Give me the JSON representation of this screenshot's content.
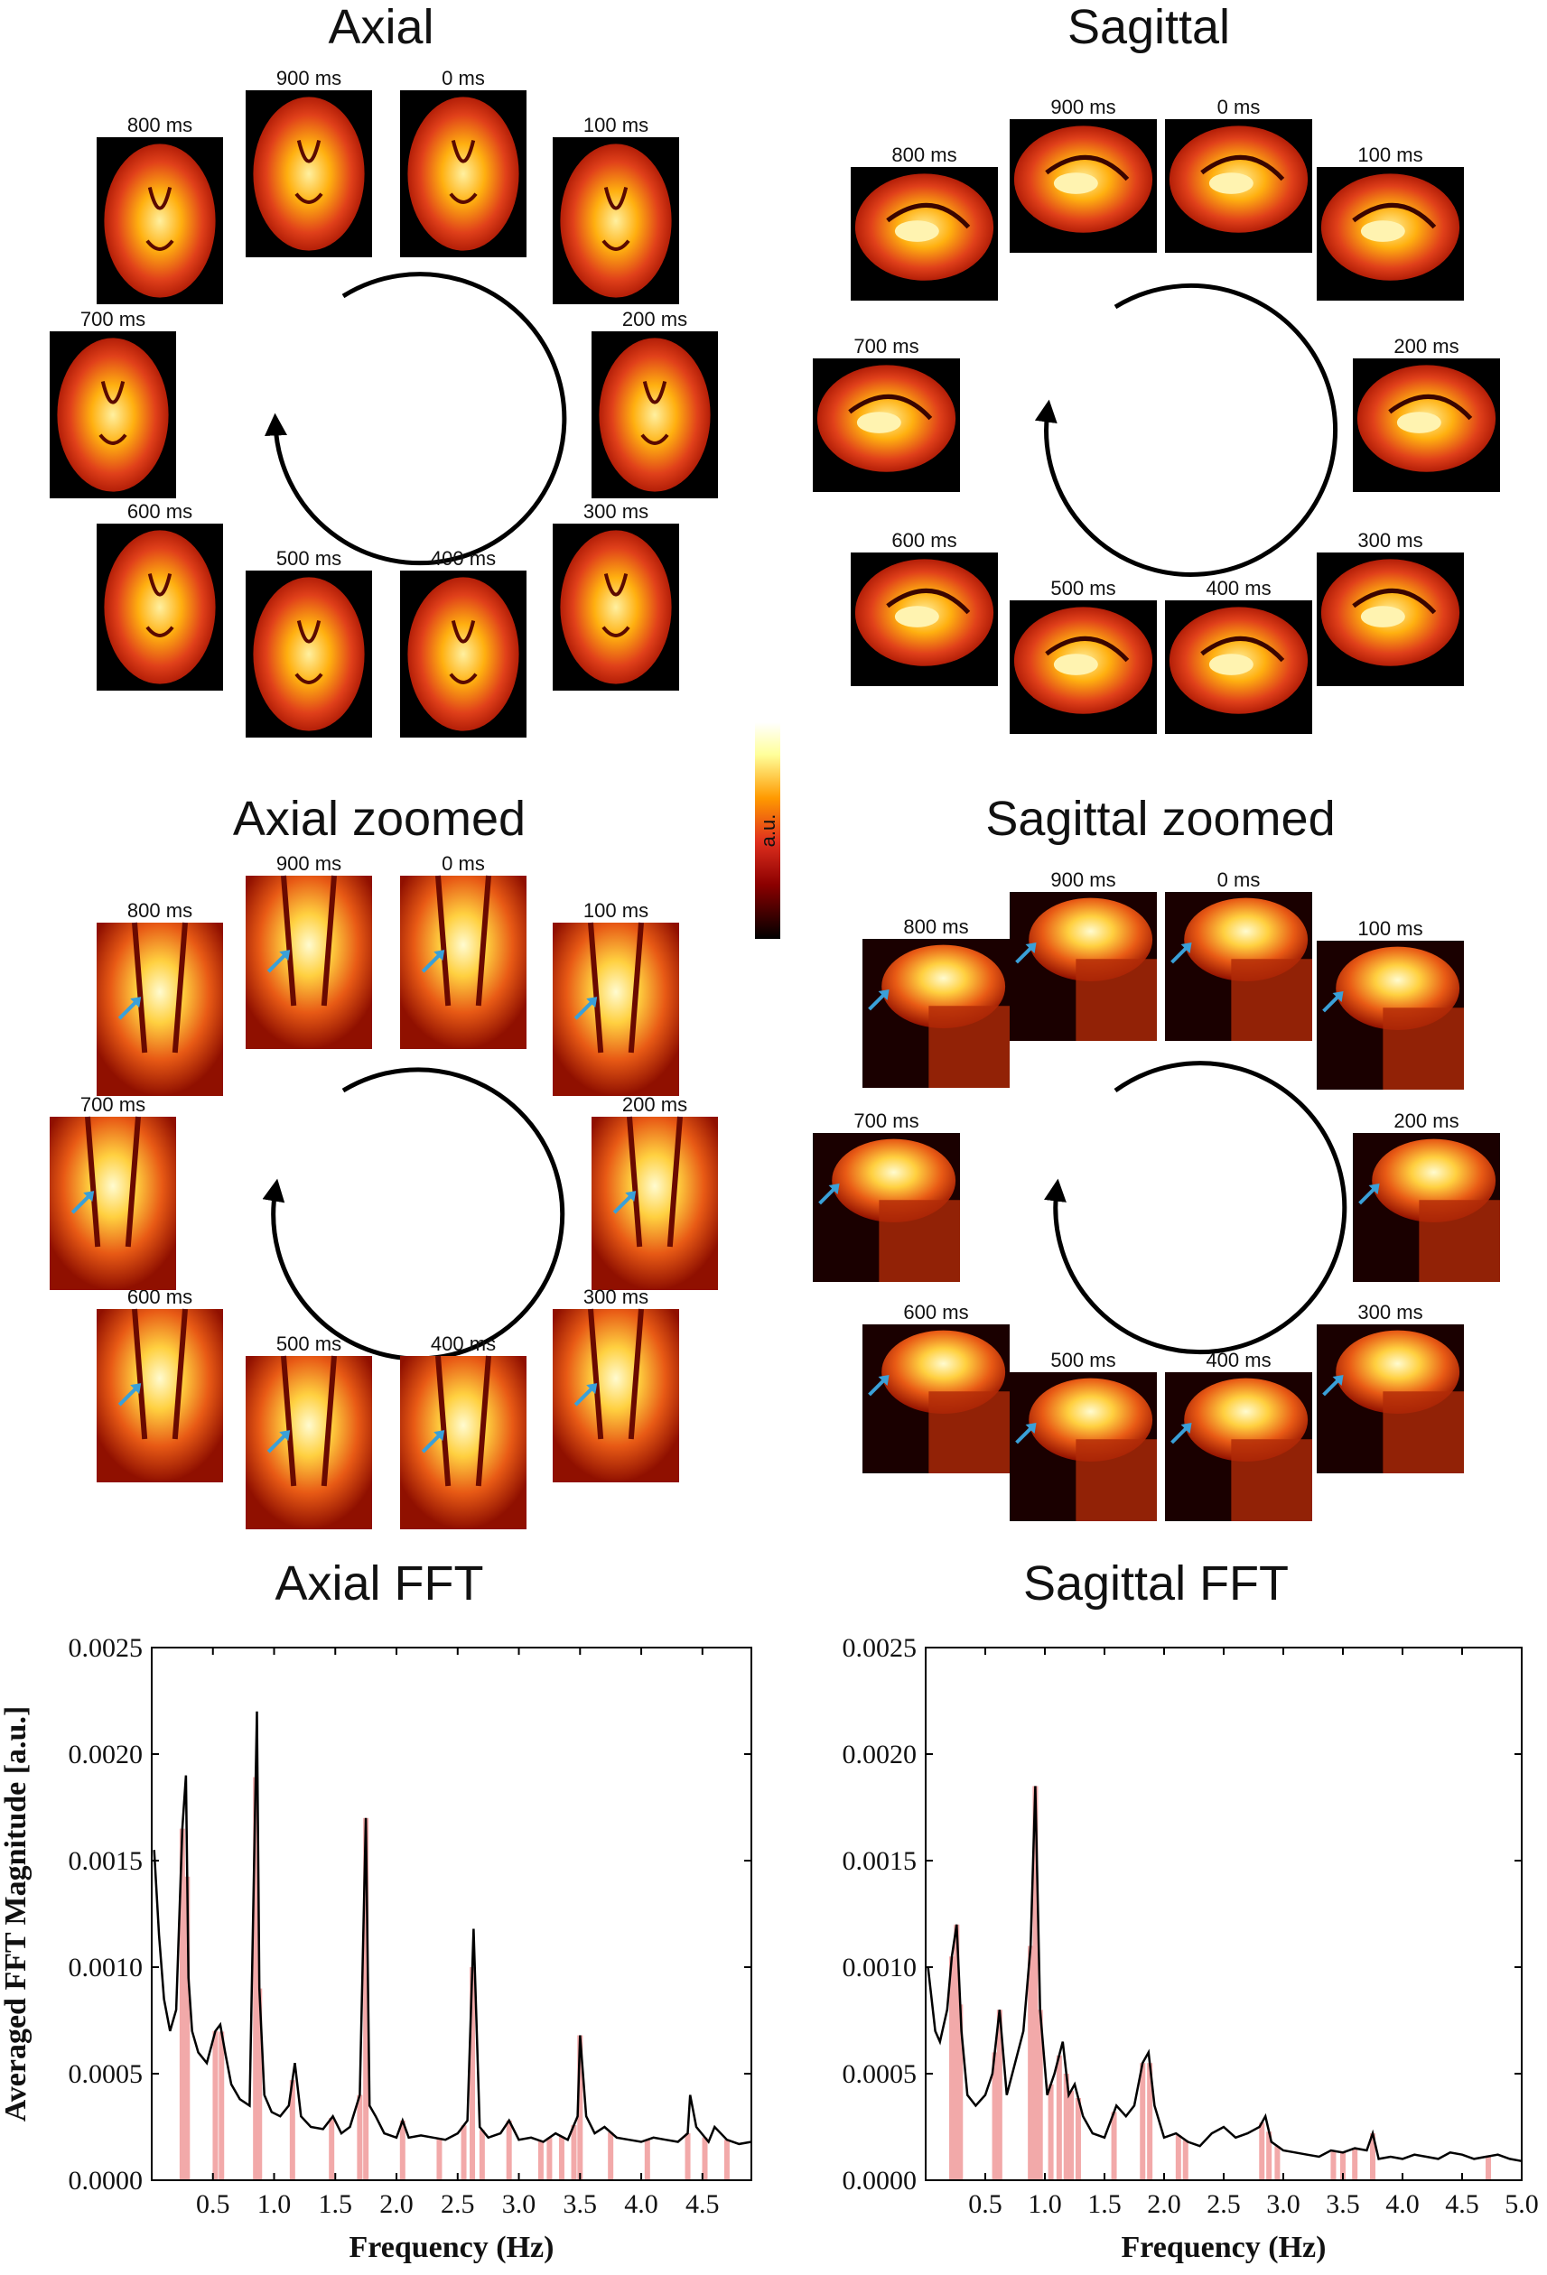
{
  "panels": {
    "axial_title": "Axial",
    "sagittal_title": "Sagittal",
    "axial_zoomed_title": "Axial zoomed",
    "sagittal_zoomed_title": "Sagittal zoomed",
    "axial_fft_title": "Axial FFT",
    "sagittal_fft_title": "Sagittal FFT"
  },
  "time_labels": [
    "0 ms",
    "100 ms",
    "200 ms",
    "300 ms",
    "400 ms",
    "500 ms",
    "600 ms",
    "700 ms",
    "800 ms",
    "900 ms"
  ],
  "colorbar": {
    "label": "a.u.",
    "colors": [
      "#000000",
      "#8b0000",
      "#e0301e",
      "#ff9a00",
      "#ffff9a",
      "#ffffff"
    ]
  },
  "colors": {
    "curve": "#000000",
    "peak_bars": "#f2a9a9",
    "arrow": "#3aa0d8"
  },
  "chart_data": [
    {
      "type": "line",
      "title": "Axial FFT",
      "xlabel": "Frequency (Hz)",
      "ylabel": "Averaged FFT Magnitude [a.u.]",
      "xlim": [
        0,
        4.9
      ],
      "ylim": [
        0,
        0.0025
      ],
      "xticks": [
        "0.5",
        "1.0",
        "1.5",
        "2.0",
        "2.5",
        "3.0",
        "3.5",
        "4.0",
        "4.5"
      ],
      "yticks": [
        "0.0000",
        "0.0005",
        "0.0010",
        "0.0015",
        "0.0020",
        "0.0025"
      ],
      "x": [
        0.02,
        0.06,
        0.1,
        0.15,
        0.2,
        0.25,
        0.28,
        0.3,
        0.33,
        0.38,
        0.45,
        0.52,
        0.56,
        0.6,
        0.65,
        0.72,
        0.8,
        0.86,
        0.88,
        0.92,
        0.98,
        1.05,
        1.12,
        1.17,
        1.22,
        1.3,
        1.4,
        1.48,
        1.55,
        1.62,
        1.7,
        1.75,
        1.78,
        1.83,
        1.9,
        2.0,
        2.05,
        2.1,
        2.2,
        2.3,
        2.4,
        2.5,
        2.58,
        2.63,
        2.68,
        2.75,
        2.85,
        2.92,
        3.0,
        3.1,
        3.2,
        3.3,
        3.4,
        3.48,
        3.5,
        3.55,
        3.62,
        3.7,
        3.8,
        3.9,
        4.0,
        4.1,
        4.2,
        4.3,
        4.38,
        4.4,
        4.45,
        4.55,
        4.6,
        4.7,
        4.8,
        4.9
      ],
      "values": [
        0.00155,
        0.00115,
        0.00085,
        0.0007,
        0.0008,
        0.00165,
        0.0019,
        0.00095,
        0.0007,
        0.0006,
        0.00055,
        0.0007,
        0.00073,
        0.0006,
        0.00045,
        0.00038,
        0.00035,
        0.0022,
        0.0009,
        0.0004,
        0.00032,
        0.0003,
        0.00035,
        0.00055,
        0.0003,
        0.00025,
        0.00024,
        0.0003,
        0.00022,
        0.00025,
        0.0004,
        0.0017,
        0.00035,
        0.0003,
        0.00022,
        0.0002,
        0.00028,
        0.0002,
        0.00021,
        0.0002,
        0.00019,
        0.00022,
        0.00028,
        0.00118,
        0.00025,
        0.0002,
        0.00022,
        0.00028,
        0.00019,
        0.0002,
        0.00018,
        0.00022,
        0.00019,
        0.0003,
        0.00068,
        0.0003,
        0.00022,
        0.00025,
        0.0002,
        0.00019,
        0.00018,
        0.0002,
        0.00019,
        0.00018,
        0.00022,
        0.0004,
        0.00025,
        0.00018,
        0.00025,
        0.00019,
        0.00017,
        0.00018
      ],
      "peaks": [
        0.25,
        0.29,
        0.52,
        0.57,
        0.85,
        0.88,
        1.15,
        1.47,
        1.7,
        1.75,
        2.05,
        2.35,
        2.55,
        2.62,
        2.7,
        2.92,
        3.18,
        3.25,
        3.35,
        3.45,
        3.5,
        3.75,
        4.05,
        4.38,
        4.52,
        4.7
      ]
    },
    {
      "type": "line",
      "title": "Sagittal FFT",
      "xlabel": "Frequency (Hz)",
      "ylabel": "",
      "xlim": [
        0,
        5.0
      ],
      "ylim": [
        0,
        0.0025
      ],
      "xticks": [
        "0.5",
        "1.0",
        "1.5",
        "2.0",
        "2.5",
        "3.0",
        "3.5",
        "4.0",
        "4.5",
        "5.0"
      ],
      "yticks": [
        "0.0000",
        "0.0005",
        "0.0010",
        "0.0015",
        "0.0020",
        "0.0025"
      ],
      "x": [
        0.02,
        0.08,
        0.12,
        0.18,
        0.22,
        0.26,
        0.3,
        0.35,
        0.42,
        0.5,
        0.56,
        0.62,
        0.68,
        0.75,
        0.82,
        0.88,
        0.92,
        0.96,
        1.02,
        1.08,
        1.15,
        1.2,
        1.25,
        1.32,
        1.4,
        1.5,
        1.6,
        1.68,
        1.75,
        1.82,
        1.87,
        1.92,
        2.0,
        2.1,
        2.2,
        2.3,
        2.4,
        2.5,
        2.6,
        2.7,
        2.8,
        2.85,
        2.9,
        3.0,
        3.1,
        3.2,
        3.3,
        3.4,
        3.5,
        3.6,
        3.7,
        3.75,
        3.8,
        3.9,
        4.0,
        4.1,
        4.2,
        4.3,
        4.4,
        4.5,
        4.6,
        4.7,
        4.8,
        4.9,
        5.0
      ],
      "values": [
        0.001,
        0.0007,
        0.00065,
        0.0008,
        0.00105,
        0.0012,
        0.0007,
        0.0004,
        0.00035,
        0.0004,
        0.0005,
        0.0008,
        0.0004,
        0.00055,
        0.0007,
        0.0011,
        0.00185,
        0.0008,
        0.0004,
        0.0005,
        0.00065,
        0.0004,
        0.00045,
        0.0003,
        0.00022,
        0.0002,
        0.00035,
        0.0003,
        0.00035,
        0.00055,
        0.0006,
        0.00035,
        0.0002,
        0.00022,
        0.00018,
        0.00016,
        0.00022,
        0.00025,
        0.0002,
        0.00022,
        0.00025,
        0.0003,
        0.00018,
        0.00014,
        0.00013,
        0.00012,
        0.00011,
        0.00014,
        0.00013,
        0.00015,
        0.00014,
        0.00022,
        0.0001,
        0.00011,
        0.0001,
        0.00012,
        0.00011,
        0.0001,
        0.00013,
        0.00012,
        0.0001,
        0.00011,
        0.00012,
        0.0001,
        9e-05
      ],
      "peaks": [
        0.22,
        0.26,
        0.29,
        0.58,
        0.62,
        0.88,
        0.92,
        0.96,
        1.05,
        1.12,
        1.18,
        1.22,
        1.28,
        1.58,
        1.82,
        1.88,
        2.12,
        2.18,
        2.82,
        2.88,
        2.95,
        3.42,
        3.5,
        3.6,
        3.75,
        4.72
      ]
    }
  ]
}
